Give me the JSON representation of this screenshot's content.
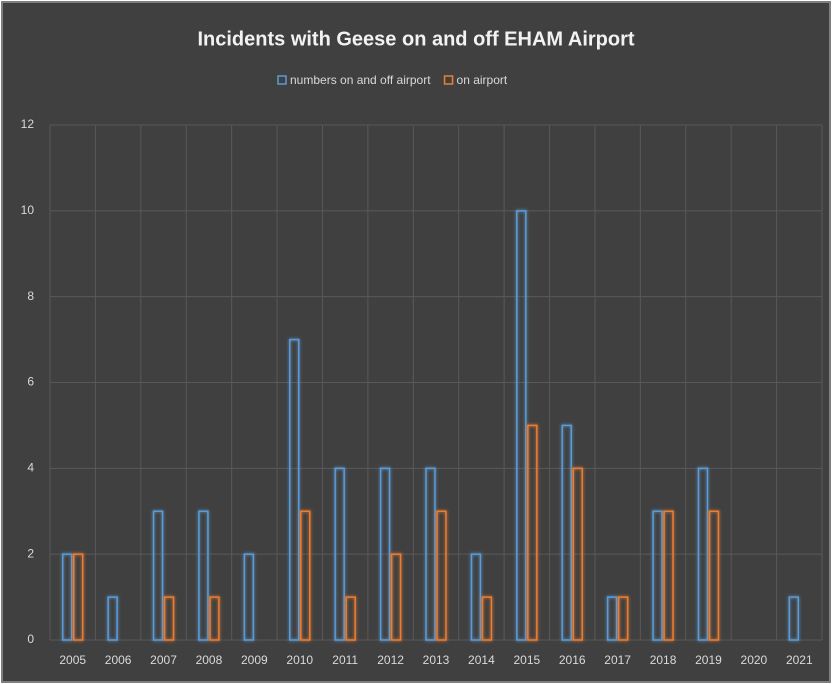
{
  "chart_data": {
    "type": "bar",
    "title": "Incidents with Geese on and off EHAM Airport",
    "categories": [
      "2005",
      "2006",
      "2007",
      "2008",
      "2009",
      "2010",
      "2011",
      "2012",
      "2013",
      "2014",
      "2015",
      "2016",
      "2017",
      "2018",
      "2019",
      "2020",
      "2021"
    ],
    "series": [
      {
        "name": "numbers on and off airport",
        "color": "#5b9bd5",
        "values": [
          2,
          1,
          3,
          3,
          2,
          7,
          4,
          4,
          4,
          2,
          10,
          5,
          1,
          3,
          4,
          0,
          1
        ]
      },
      {
        "name": "on airport",
        "color": "#ed7d31",
        "values": [
          2,
          0,
          1,
          1,
          0,
          3,
          1,
          2,
          3,
          1,
          5,
          4,
          1,
          3,
          3,
          0,
          0
        ]
      }
    ],
    "ylim": [
      0,
      12
    ],
    "yticks": [
      0,
      2,
      4,
      6,
      8,
      10,
      12
    ],
    "grid": true,
    "legend": "top"
  }
}
